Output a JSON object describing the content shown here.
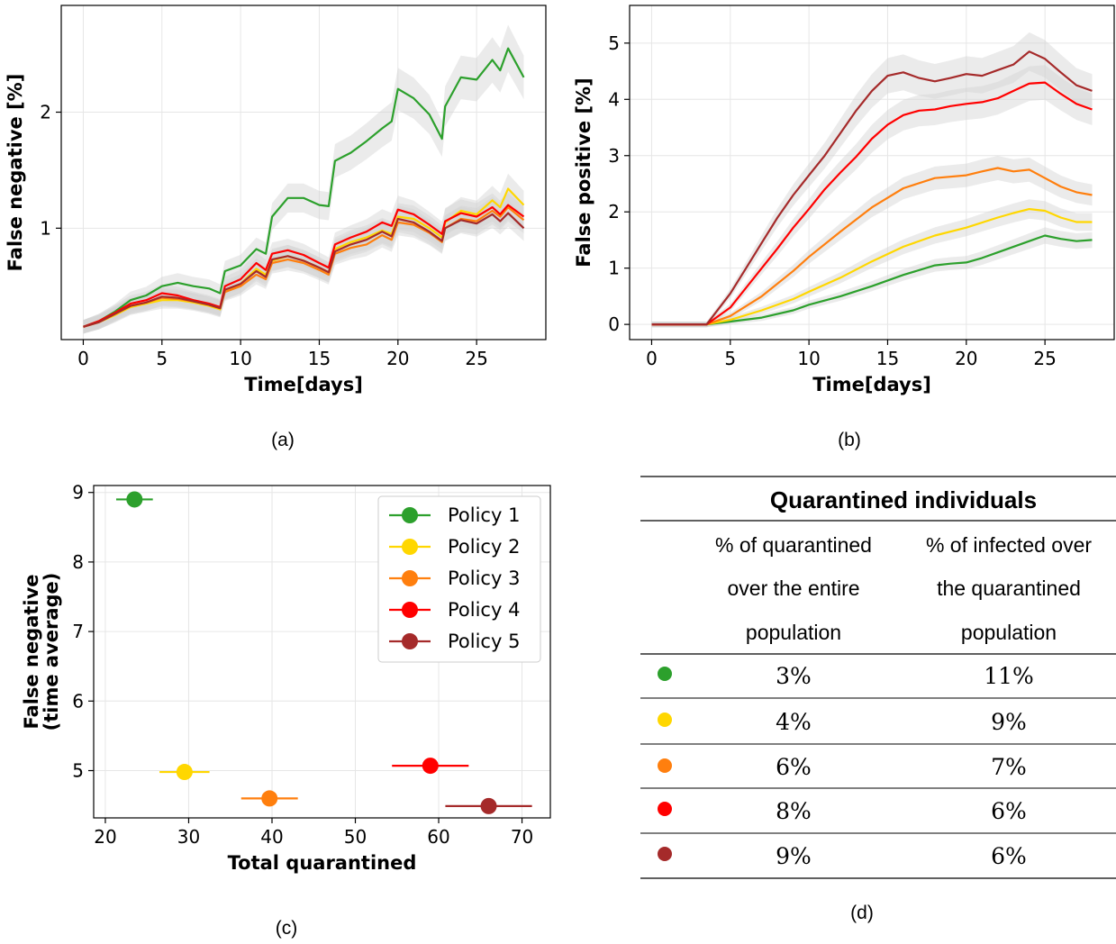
{
  "chart_data": [
    {
      "id": "a",
      "type": "line",
      "caption": "(a)",
      "xlabel": "Time[days]",
      "ylabel": "False negative [%]",
      "xlim": [
        -1.4,
        29.4
      ],
      "ylim": [
        0.04,
        2.92
      ],
      "xticks": [
        0,
        5,
        10,
        15,
        20,
        25
      ],
      "yticks": [
        1,
        2
      ],
      "grid": true,
      "series": [
        {
          "color": "#2ca02c",
          "x": [
            0,
            1,
            2,
            3,
            4,
            5,
            6,
            7,
            8,
            8.7,
            9,
            10,
            11,
            11.6,
            12,
            13,
            14,
            15,
            15.6,
            16,
            17,
            18,
            19,
            19.6,
            20,
            21,
            22,
            22.8,
            23,
            24,
            25,
            26,
            26.5,
            27,
            28
          ],
          "y": [
            0.15,
            0.2,
            0.28,
            0.38,
            0.42,
            0.5,
            0.53,
            0.5,
            0.48,
            0.44,
            0.63,
            0.68,
            0.82,
            0.78,
            1.1,
            1.26,
            1.26,
            1.2,
            1.19,
            1.58,
            1.65,
            1.75,
            1.86,
            1.92,
            2.2,
            2.12,
            1.98,
            1.77,
            2.05,
            2.3,
            2.28,
            2.45,
            2.36,
            2.55,
            2.3
          ]
        },
        {
          "color": "#ffd700",
          "x": [
            0,
            1,
            2,
            3,
            4,
            5,
            6,
            7,
            8,
            8.7,
            9,
            10,
            11,
            11.6,
            12,
            13,
            14,
            15,
            15.6,
            16,
            17,
            18,
            19,
            19.6,
            20,
            21,
            22,
            22.8,
            23,
            24,
            25,
            26,
            26.5,
            27,
            28
          ],
          "y": [
            0.15,
            0.19,
            0.25,
            0.32,
            0.35,
            0.38,
            0.38,
            0.36,
            0.33,
            0.3,
            0.46,
            0.52,
            0.65,
            0.6,
            0.72,
            0.76,
            0.72,
            0.66,
            0.62,
            0.82,
            0.88,
            0.92,
            0.98,
            0.95,
            1.1,
            1.08,
            1.0,
            0.92,
            1.05,
            1.15,
            1.12,
            1.24,
            1.18,
            1.34,
            1.2
          ]
        },
        {
          "color": "#ff7f0e",
          "x": [
            0,
            1,
            2,
            3,
            4,
            5,
            6,
            7,
            8,
            8.7,
            9,
            10,
            11,
            11.6,
            12,
            13,
            14,
            15,
            15.6,
            16,
            17,
            18,
            19,
            19.6,
            20,
            21,
            22,
            22.8,
            23,
            24,
            25,
            26,
            26.5,
            27,
            28
          ],
          "y": [
            0.15,
            0.19,
            0.26,
            0.33,
            0.36,
            0.4,
            0.39,
            0.37,
            0.34,
            0.31,
            0.45,
            0.5,
            0.6,
            0.56,
            0.7,
            0.73,
            0.7,
            0.64,
            0.6,
            0.78,
            0.83,
            0.86,
            0.94,
            0.9,
            1.05,
            1.03,
            0.96,
            0.88,
            1.0,
            1.08,
            1.06,
            1.15,
            1.1,
            1.18,
            1.07
          ]
        },
        {
          "color": "#ff0000",
          "x": [
            0,
            1,
            2,
            3,
            4,
            5,
            6,
            7,
            8,
            8.7,
            9,
            10,
            11,
            11.6,
            12,
            13,
            14,
            15,
            15.6,
            16,
            17,
            18,
            19,
            19.6,
            20,
            21,
            22,
            22.8,
            23,
            24,
            25,
            26,
            26.5,
            27,
            28
          ],
          "y": [
            0.15,
            0.2,
            0.27,
            0.35,
            0.38,
            0.44,
            0.42,
            0.38,
            0.35,
            0.32,
            0.5,
            0.56,
            0.7,
            0.64,
            0.78,
            0.81,
            0.77,
            0.7,
            0.66,
            0.86,
            0.92,
            0.97,
            1.05,
            1.02,
            1.16,
            1.12,
            1.03,
            0.95,
            1.06,
            1.13,
            1.1,
            1.18,
            1.12,
            1.2,
            1.1
          ]
        },
        {
          "color": "#a52a2a",
          "x": [
            0,
            1,
            2,
            3,
            4,
            5,
            6,
            7,
            8,
            8.7,
            9,
            10,
            11,
            11.6,
            12,
            13,
            14,
            15,
            15.6,
            16,
            17,
            18,
            19,
            19.6,
            20,
            21,
            22,
            22.8,
            23,
            24,
            25,
            26,
            26.5,
            27,
            28
          ],
          "y": [
            0.15,
            0.19,
            0.26,
            0.33,
            0.36,
            0.41,
            0.4,
            0.37,
            0.34,
            0.31,
            0.47,
            0.52,
            0.63,
            0.58,
            0.73,
            0.76,
            0.72,
            0.66,
            0.62,
            0.8,
            0.86,
            0.9,
            0.97,
            0.93,
            1.08,
            1.05,
            0.97,
            0.89,
            1.0,
            1.07,
            1.04,
            1.12,
            1.06,
            1.13,
            1.0
          ]
        }
      ]
    },
    {
      "id": "b",
      "type": "line",
      "caption": "(b)",
      "xlabel": "Time[days]",
      "ylabel": "False positive [%]",
      "xlim": [
        -1.4,
        29.4
      ],
      "ylim": [
        -0.27,
        5.67
      ],
      "xticks": [
        0,
        5,
        10,
        15,
        20,
        25
      ],
      "yticks": [
        0,
        1,
        2,
        3,
        4,
        5
      ],
      "grid": true,
      "series": [
        {
          "color": "#2ca02c",
          "x": [
            0,
            2,
            3.5,
            5,
            7,
            9,
            10,
            12,
            14,
            16,
            18,
            19,
            20,
            21,
            22,
            24,
            25,
            26,
            27,
            28
          ],
          "y": [
            0,
            0,
            0,
            0.05,
            0.12,
            0.25,
            0.35,
            0.5,
            0.68,
            0.88,
            1.05,
            1.08,
            1.1,
            1.18,
            1.28,
            1.48,
            1.58,
            1.52,
            1.48,
            1.5
          ]
        },
        {
          "color": "#ffd700",
          "x": [
            0,
            2,
            3.5,
            5,
            7,
            9,
            10,
            12,
            14,
            16,
            18,
            20,
            22,
            23,
            24,
            25,
            26,
            27,
            28
          ],
          "y": [
            0,
            0,
            0,
            0.08,
            0.25,
            0.45,
            0.58,
            0.83,
            1.12,
            1.38,
            1.58,
            1.72,
            1.9,
            1.98,
            2.05,
            2.02,
            1.9,
            1.82,
            1.82
          ]
        },
        {
          "color": "#ff7f0e",
          "x": [
            0,
            2,
            3.5,
            5,
            7,
            9,
            10,
            12,
            14,
            15,
            16,
            18,
            20,
            21,
            22,
            23,
            24,
            25,
            26,
            27,
            28
          ],
          "y": [
            0,
            0,
            0,
            0.15,
            0.5,
            0.95,
            1.2,
            1.65,
            2.08,
            2.25,
            2.42,
            2.6,
            2.65,
            2.72,
            2.78,
            2.72,
            2.75,
            2.6,
            2.45,
            2.35,
            2.3
          ]
        },
        {
          "color": "#ff0000",
          "x": [
            0,
            2,
            3.5,
            5,
            6,
            7,
            8,
            9,
            10,
            11,
            12,
            13,
            14,
            15,
            16,
            17,
            18,
            19,
            20,
            21,
            22,
            23,
            24,
            25,
            26,
            27,
            28
          ],
          "y": [
            0,
            0,
            0,
            0.3,
            0.65,
            1.0,
            1.35,
            1.72,
            2.05,
            2.4,
            2.7,
            2.98,
            3.3,
            3.55,
            3.72,
            3.8,
            3.82,
            3.88,
            3.92,
            3.95,
            4.02,
            4.15,
            4.28,
            4.3,
            4.1,
            3.92,
            3.82
          ]
        },
        {
          "color": "#a52a2a",
          "x": [
            0,
            2,
            3.5,
            5,
            6,
            7,
            8,
            9,
            10,
            11,
            12,
            13,
            14,
            15,
            16,
            17,
            18,
            19,
            20,
            21,
            22,
            23,
            24,
            25,
            26,
            27,
            28
          ],
          "y": [
            0,
            0,
            0,
            0.55,
            1.0,
            1.45,
            1.9,
            2.3,
            2.65,
            3.0,
            3.4,
            3.8,
            4.15,
            4.42,
            4.48,
            4.38,
            4.32,
            4.38,
            4.45,
            4.42,
            4.52,
            4.62,
            4.85,
            4.72,
            4.48,
            4.25,
            4.15
          ]
        }
      ]
    },
    {
      "id": "c",
      "type": "scatter",
      "caption": "(c)",
      "xlabel": "Total quarantined",
      "ylabel_lines": [
        "False negative",
        "(time average)"
      ],
      "xlim": [
        18.6,
        73.4
      ],
      "ylim": [
        4.32,
        9.1
      ],
      "xticks": [
        20,
        30,
        40,
        50,
        60,
        70
      ],
      "yticks": [
        5,
        6,
        7,
        8,
        9
      ],
      "grid": true,
      "legend_position": "top-right",
      "points": [
        {
          "name": "Policy 1",
          "color": "#2ca02c",
          "x": 23.5,
          "y": 8.9,
          "xerr": 2.2
        },
        {
          "name": "Policy 2",
          "color": "#ffd700",
          "x": 29.5,
          "y": 4.98,
          "xerr": 3.0
        },
        {
          "name": "Policy 3",
          "color": "#ff7f0e",
          "x": 39.7,
          "y": 4.6,
          "xerr": 3.4
        },
        {
          "name": "Policy 4",
          "color": "#ff0000",
          "x": 59.0,
          "y": 5.07,
          "xerr": 4.6
        },
        {
          "name": "Policy 5",
          "color": "#a52a2a",
          "x": 66.0,
          "y": 4.49,
          "xerr": 5.2
        }
      ]
    }
  ],
  "table": {
    "caption": "(d)",
    "title": "Quarantined individuals",
    "col1_header": [
      "% of quarantined",
      "over the entire",
      "population"
    ],
    "col2_header": [
      "% of infected over",
      "the quarantined",
      "population"
    ],
    "rows": [
      {
        "color": "#2ca02c",
        "quarantined": "3%",
        "infected": "11%"
      },
      {
        "color": "#ffd700",
        "quarantined": "4%",
        "infected": "9%"
      },
      {
        "color": "#ff7f0e",
        "quarantined": "6%",
        "infected": "7%"
      },
      {
        "color": "#ff0000",
        "quarantined": "8%",
        "infected": "6%"
      },
      {
        "color": "#a52a2a",
        "quarantined": "9%",
        "infected": "6%"
      }
    ]
  }
}
